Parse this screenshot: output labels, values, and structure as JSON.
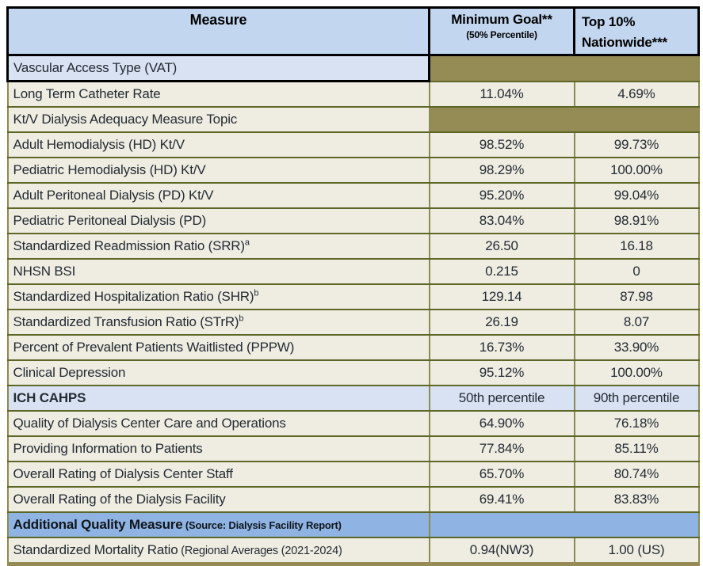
{
  "header": {
    "measure": "Measure",
    "min_goal": "Minimum Goal**",
    "min_goal_sub": "(50% Percentile)",
    "top10": "Top 10% Nationwide***"
  },
  "colors": {
    "header_bg": "#C2D6EF",
    "header_border": "#000000",
    "section_blue": "#D8E2F3",
    "additional_blue": "#8FB3E2",
    "olive": "#948B55",
    "cream": "#EFEDE2",
    "border_dark": "#5C6625",
    "border_olive": "#8B8B51"
  },
  "rows": [
    {
      "type": "section-vat",
      "label": "Vascular Access Type (VAT)"
    },
    {
      "type": "data",
      "label": "Long Term Catheter Rate",
      "min_goal": "11.04%",
      "top10": "4.69%"
    },
    {
      "type": "section-topic",
      "label": "Kt/V Dialysis Adequacy Measure Topic"
    },
    {
      "type": "data",
      "label": "Adult Hemodialysis (HD) Kt/V",
      "min_goal": "98.52%",
      "top10": "99.73%"
    },
    {
      "type": "data",
      "label": "Pediatric Hemodialysis (HD) Kt/V",
      "min_goal": "98.29%",
      "top10": "100.00%"
    },
    {
      "type": "data",
      "label": "Adult Peritoneal Dialysis (PD) Kt/V",
      "min_goal": "95.20%",
      "top10": "99.04%"
    },
    {
      "type": "data",
      "label": "Pediatric Peritoneal Dialysis (PD)",
      "min_goal": "83.04%",
      "top10": "98.91%"
    },
    {
      "type": "data",
      "label": "Standardized Readmission Ratio (SRR)",
      "sup": "a",
      "min_goal": "26.50",
      "top10": "16.18"
    },
    {
      "type": "data",
      "label": "NHSN BSI",
      "min_goal": "0.215",
      "top10": "0"
    },
    {
      "type": "data",
      "label": "Standardized Hospitalization Ratio (SHR)",
      "sup": "b",
      "min_goal": "129.14",
      "top10": "87.98"
    },
    {
      "type": "data",
      "label": "Standardized Transfusion Ratio (STrR)",
      "sup": "b",
      "min_goal": "26.19",
      "top10": "8.07"
    },
    {
      "type": "data",
      "label": "Percent of Prevalent Patients Waitlisted (PPPW)",
      "min_goal": "16.73%",
      "top10": "33.90%"
    },
    {
      "type": "data",
      "label": "Clinical Depression",
      "min_goal": "95.12%",
      "top10": "100.00%"
    },
    {
      "type": "section-ich",
      "label": "ICH CAHPS",
      "min_goal": "50th percentile",
      "top10": "90th percentile"
    },
    {
      "type": "data",
      "label": "Quality of Dialysis Center Care and Operations",
      "min_goal": "64.90%",
      "top10": "76.18%"
    },
    {
      "type": "data",
      "label": "Providing Information to Patients",
      "min_goal": "77.84%",
      "top10": "85.11%"
    },
    {
      "type": "data",
      "label": "Overall Rating of Dialysis Center Staff",
      "min_goal": "65.70%",
      "top10": "80.74%"
    },
    {
      "type": "data",
      "label": "Overall Rating of the Dialysis Facility",
      "min_goal": "69.41%",
      "top10": "83.83%"
    },
    {
      "type": "section-additional",
      "label": "Additional Quality Measure",
      "sublabel": "(Source: Dialysis Facility Report)"
    },
    {
      "type": "data",
      "label": "Standardized Mortality Ratio",
      "sublabel": "(Regional Averages (2021-2024)",
      "min_goal": "0.94(NW3)",
      "top10": "1.00 (US)"
    }
  ]
}
